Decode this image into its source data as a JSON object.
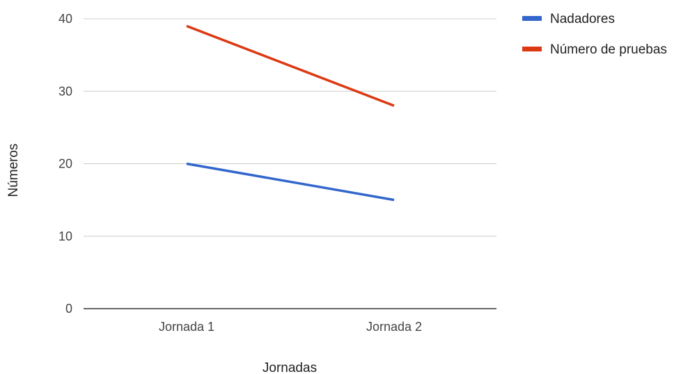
{
  "chart_data": {
    "type": "line",
    "title": "",
    "xlabel": "Jornadas",
    "ylabel": "Números",
    "categories": [
      "Jornada 1",
      "Jornada 2"
    ],
    "ylim": [
      0,
      40
    ],
    "yticks": [
      0,
      10,
      20,
      30,
      40
    ],
    "grid": true,
    "legend_position": "top-right",
    "series": [
      {
        "name": "Nadadores",
        "values": [
          20,
          15
        ],
        "color": "#3366CC"
      },
      {
        "name": "Número de pruebas",
        "values": [
          39,
          28
        ],
        "color": "#DC3912"
      }
    ]
  }
}
